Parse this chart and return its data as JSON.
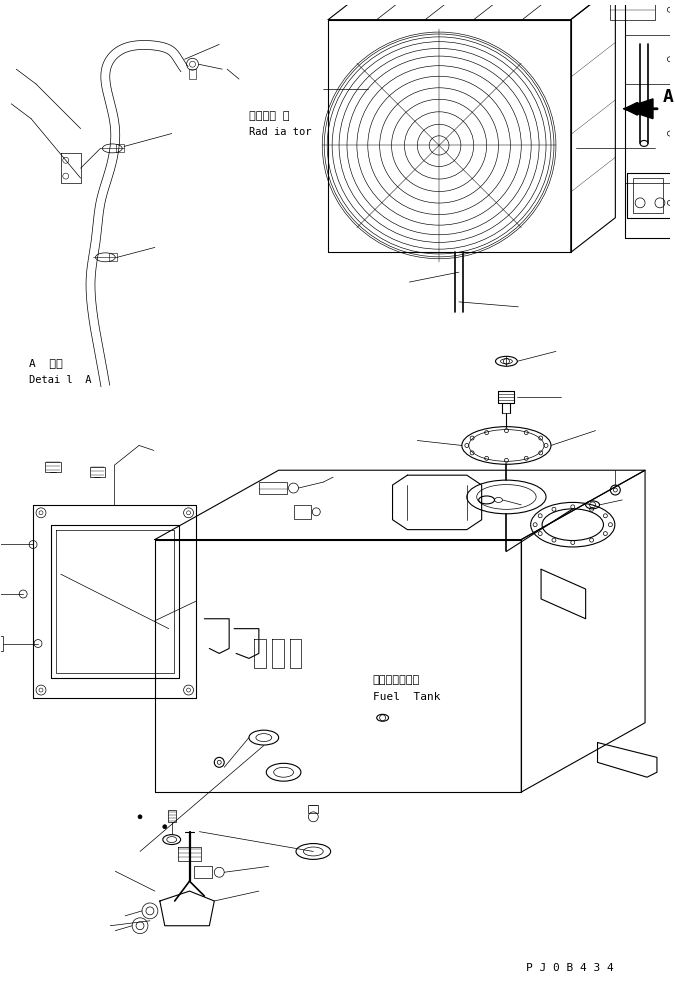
{
  "bg_color": "#ffffff",
  "line_color": "#000000",
  "title_bottom": "P J 0 B 4 3 4",
  "label_radiator_jp": "ラジエー タ",
  "label_radiator_en": "Rad ia tor",
  "label_detail_jp": "A  詳細",
  "label_detail_en": "Detai l  A",
  "label_fueltank_jp": "フェエルタンク",
  "label_fueltank_en": "Fuel  Tank",
  "arrow_A_label": "A",
  "fig_width": 6.75,
  "fig_height": 9.85,
  "dpi": 100
}
